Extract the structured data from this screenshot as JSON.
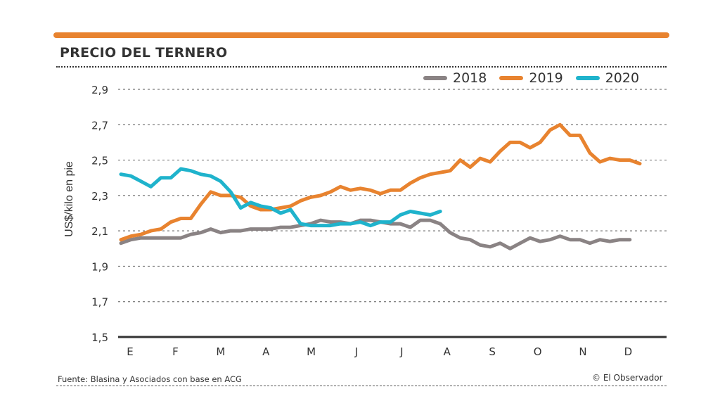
{
  "header": {
    "title": "PRECIO DEL TERNERO",
    "accent_color": "#e8832f"
  },
  "footer": {
    "source": "Fuente: Blasina y Asociados con base en ACG",
    "credit": "© El Observador"
  },
  "chart_data": {
    "type": "line",
    "title": "PRECIO DEL TERNERO",
    "xlabel": "",
    "ylabel": "US$/kilo en pie",
    "ylim": [
      1.5,
      2.9
    ],
    "yticks": [
      1.5,
      1.7,
      1.9,
      2.1,
      2.3,
      2.5,
      2.7,
      2.9
    ],
    "ytick_labels": [
      "1,5",
      "1,7",
      "1,9",
      "2,1",
      "2,3",
      "2,5",
      "2,7",
      "2,9"
    ],
    "x_categories": [
      "E",
      "F",
      "M",
      "A",
      "M",
      "J",
      "J",
      "A",
      "S",
      "O",
      "N",
      "D"
    ],
    "x_unit": "week",
    "x_count": 52,
    "grid": true,
    "legend_position": "top-right",
    "series": [
      {
        "name": "2018",
        "color": "#8a8384",
        "values": [
          2.03,
          2.05,
          2.06,
          2.06,
          2.06,
          2.06,
          2.06,
          2.08,
          2.09,
          2.11,
          2.09,
          2.1,
          2.1,
          2.11,
          2.11,
          2.11,
          2.12,
          2.12,
          2.13,
          2.14,
          2.16,
          2.15,
          2.15,
          2.14,
          2.16,
          2.16,
          2.15,
          2.14,
          2.14,
          2.12,
          2.16,
          2.16,
          2.14,
          2.09,
          2.06,
          2.05,
          2.02,
          2.01,
          2.03,
          2.0,
          2.03,
          2.06,
          2.04,
          2.05,
          2.07,
          2.05,
          2.05,
          2.03,
          2.05,
          2.04,
          2.05,
          2.05
        ]
      },
      {
        "name": "2019",
        "color": "#e8832f",
        "values": [
          2.05,
          2.07,
          2.08,
          2.1,
          2.11,
          2.15,
          2.17,
          2.17,
          2.25,
          2.32,
          2.3,
          2.3,
          2.29,
          2.24,
          2.22,
          2.22,
          2.23,
          2.24,
          2.27,
          2.29,
          2.3,
          2.32,
          2.35,
          2.33,
          2.34,
          2.33,
          2.31,
          2.33,
          2.33,
          2.37,
          2.4,
          2.42,
          2.43,
          2.44,
          2.5,
          2.46,
          2.51,
          2.49,
          2.55,
          2.6,
          2.6,
          2.57,
          2.6,
          2.67,
          2.7,
          2.64,
          2.64,
          2.54,
          2.49,
          2.51,
          2.5,
          2.5,
          2.48
        ]
      },
      {
        "name": "2020",
        "color": "#1fb3cc",
        "values": [
          2.42,
          2.41,
          2.38,
          2.35,
          2.4,
          2.4,
          2.45,
          2.44,
          2.42,
          2.41,
          2.38,
          2.32,
          2.23,
          2.26,
          2.24,
          2.23,
          2.2,
          2.22,
          2.14,
          2.13,
          2.13,
          2.13,
          2.14,
          2.14,
          2.15,
          2.13,
          2.15,
          2.15,
          2.19,
          2.21,
          2.2,
          2.19,
          2.21
        ]
      }
    ]
  }
}
